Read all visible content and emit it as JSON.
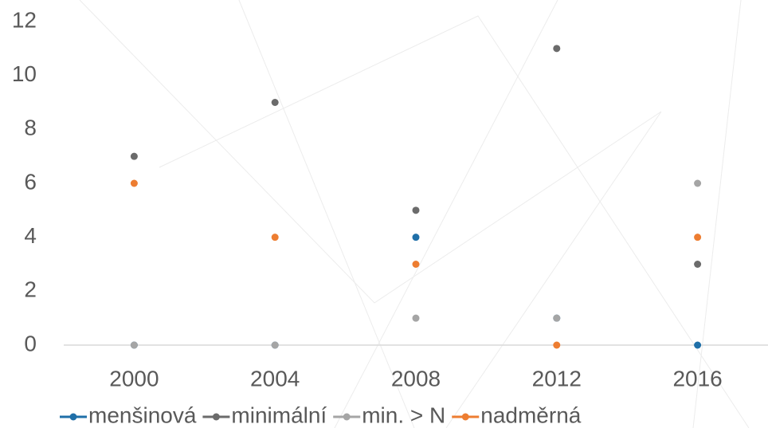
{
  "chart_data": {
    "type": "line",
    "categories": [
      "2000",
      "2004",
      "2008",
      "2012",
      "2016"
    ],
    "series": [
      {
        "name": "menšinová",
        "color": "#1f6fa8",
        "values": [
          0,
          0,
          4,
          1,
          0
        ]
      },
      {
        "name": "minimální",
        "color": "#6b6b6b",
        "values": [
          7,
          9,
          5,
          11,
          3
        ]
      },
      {
        "name": "min. > N",
        "color": "#a5a5a5",
        "values": [
          0,
          0,
          1,
          1,
          6
        ]
      },
      {
        "name": "nadměrná",
        "color": "#ed7d31",
        "values": [
          6,
          4,
          3,
          0,
          4
        ]
      }
    ],
    "ylim": [
      0,
      12
    ],
    "yticks": [
      0,
      2,
      4,
      6,
      8,
      10,
      12
    ],
    "grid": false,
    "legend": "bottom"
  }
}
